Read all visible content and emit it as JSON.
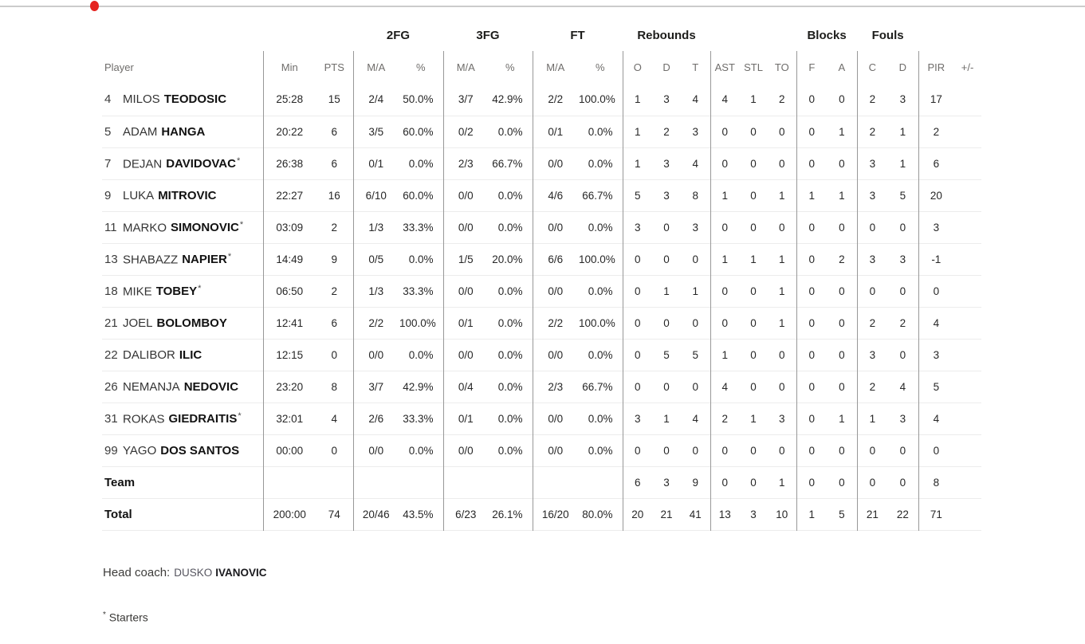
{
  "page": {
    "top_marker": {
      "line_color": "#cccccc",
      "dot_color": "#e5231f"
    }
  },
  "table": {
    "starter_mark": "*",
    "group_headers": {
      "fg2": "2FG",
      "fg3": "3FG",
      "ft": "FT",
      "rebounds": "Rebounds",
      "blocks": "Blocks",
      "fouls": "Fouls"
    },
    "sub_headers": {
      "player": "Player",
      "min": "Min",
      "pts": "PTS",
      "ma": "M/A",
      "pct": "%",
      "reb_o": "O",
      "reb_d": "D",
      "reb_t": "T",
      "ast": "AST",
      "stl": "STL",
      "to": "TO",
      "blk_f": "F",
      "blk_a": "A",
      "foul_c": "C",
      "foul_d": "D",
      "pir": "PIR",
      "pm": "+/-"
    },
    "rows": [
      {
        "kind": "player",
        "number": "4",
        "first": "MILOS",
        "last": "TEODOSIC",
        "starter": false,
        "min": "25:28",
        "pts": "15",
        "fg2_ma": "2/4",
        "fg2_pct": "50.0%",
        "fg3_ma": "3/7",
        "fg3_pct": "42.9%",
        "ft_ma": "2/2",
        "ft_pct": "100.0%",
        "reb_o": "1",
        "reb_d": "3",
        "reb_t": "4",
        "ast": "4",
        "stl": "1",
        "to": "2",
        "blk_f": "0",
        "blk_a": "0",
        "foul_c": "2",
        "foul_d": "3",
        "pir": "17",
        "pm": ""
      },
      {
        "kind": "player",
        "number": "5",
        "first": "ADAM",
        "last": "HANGA",
        "starter": false,
        "min": "20:22",
        "pts": "6",
        "fg2_ma": "3/5",
        "fg2_pct": "60.0%",
        "fg3_ma": "0/2",
        "fg3_pct": "0.0%",
        "ft_ma": "0/1",
        "ft_pct": "0.0%",
        "reb_o": "1",
        "reb_d": "2",
        "reb_t": "3",
        "ast": "0",
        "stl": "0",
        "to": "0",
        "blk_f": "0",
        "blk_a": "1",
        "foul_c": "2",
        "foul_d": "1",
        "pir": "2",
        "pm": ""
      },
      {
        "kind": "player",
        "number": "7",
        "first": "DEJAN",
        "last": "DAVIDOVAC",
        "starter": true,
        "min": "26:38",
        "pts": "6",
        "fg2_ma": "0/1",
        "fg2_pct": "0.0%",
        "fg3_ma": "2/3",
        "fg3_pct": "66.7%",
        "ft_ma": "0/0",
        "ft_pct": "0.0%",
        "reb_o": "1",
        "reb_d": "3",
        "reb_t": "4",
        "ast": "0",
        "stl": "0",
        "to": "0",
        "blk_f": "0",
        "blk_a": "0",
        "foul_c": "3",
        "foul_d": "1",
        "pir": "6",
        "pm": ""
      },
      {
        "kind": "player",
        "number": "9",
        "first": "LUKA",
        "last": "MITROVIC",
        "starter": false,
        "min": "22:27",
        "pts": "16",
        "fg2_ma": "6/10",
        "fg2_pct": "60.0%",
        "fg3_ma": "0/0",
        "fg3_pct": "0.0%",
        "ft_ma": "4/6",
        "ft_pct": "66.7%",
        "reb_o": "5",
        "reb_d": "3",
        "reb_t": "8",
        "ast": "1",
        "stl": "0",
        "to": "1",
        "blk_f": "1",
        "blk_a": "1",
        "foul_c": "3",
        "foul_d": "5",
        "pir": "20",
        "pm": ""
      },
      {
        "kind": "player",
        "number": "11",
        "first": "MARKO",
        "last": "SIMONOVIC",
        "starter": true,
        "min": "03:09",
        "pts": "2",
        "fg2_ma": "1/3",
        "fg2_pct": "33.3%",
        "fg3_ma": "0/0",
        "fg3_pct": "0.0%",
        "ft_ma": "0/0",
        "ft_pct": "0.0%",
        "reb_o": "3",
        "reb_d": "0",
        "reb_t": "3",
        "ast": "0",
        "stl": "0",
        "to": "0",
        "blk_f": "0",
        "blk_a": "0",
        "foul_c": "0",
        "foul_d": "0",
        "pir": "3",
        "pm": ""
      },
      {
        "kind": "player",
        "number": "13",
        "first": "SHABAZZ",
        "last": "NAPIER",
        "starter": true,
        "min": "14:49",
        "pts": "9",
        "fg2_ma": "0/5",
        "fg2_pct": "0.0%",
        "fg3_ma": "1/5",
        "fg3_pct": "20.0%",
        "ft_ma": "6/6",
        "ft_pct": "100.0%",
        "reb_o": "0",
        "reb_d": "0",
        "reb_t": "0",
        "ast": "1",
        "stl": "1",
        "to": "1",
        "blk_f": "0",
        "blk_a": "2",
        "foul_c": "3",
        "foul_d": "3",
        "pir": "-1",
        "pm": ""
      },
      {
        "kind": "player",
        "number": "18",
        "first": "MIKE",
        "last": "TOBEY",
        "starter": true,
        "min": "06:50",
        "pts": "2",
        "fg2_ma": "1/3",
        "fg2_pct": "33.3%",
        "fg3_ma": "0/0",
        "fg3_pct": "0.0%",
        "ft_ma": "0/0",
        "ft_pct": "0.0%",
        "reb_o": "0",
        "reb_d": "1",
        "reb_t": "1",
        "ast": "0",
        "stl": "0",
        "to": "1",
        "blk_f": "0",
        "blk_a": "0",
        "foul_c": "0",
        "foul_d": "0",
        "pir": "0",
        "pm": ""
      },
      {
        "kind": "player",
        "number": "21",
        "first": "JOEL",
        "last": "BOLOMBOY",
        "starter": false,
        "min": "12:41",
        "pts": "6",
        "fg2_ma": "2/2",
        "fg2_pct": "100.0%",
        "fg3_ma": "0/1",
        "fg3_pct": "0.0%",
        "ft_ma": "2/2",
        "ft_pct": "100.0%",
        "reb_o": "0",
        "reb_d": "0",
        "reb_t": "0",
        "ast": "0",
        "stl": "0",
        "to": "1",
        "blk_f": "0",
        "blk_a": "0",
        "foul_c": "2",
        "foul_d": "2",
        "pir": "4",
        "pm": ""
      },
      {
        "kind": "player",
        "number": "22",
        "first": "DALIBOR",
        "last": "ILIC",
        "starter": false,
        "min": "12:15",
        "pts": "0",
        "fg2_ma": "0/0",
        "fg2_pct": "0.0%",
        "fg3_ma": "0/0",
        "fg3_pct": "0.0%",
        "ft_ma": "0/0",
        "ft_pct": "0.0%",
        "reb_o": "0",
        "reb_d": "5",
        "reb_t": "5",
        "ast": "1",
        "stl": "0",
        "to": "0",
        "blk_f": "0",
        "blk_a": "0",
        "foul_c": "3",
        "foul_d": "0",
        "pir": "3",
        "pm": ""
      },
      {
        "kind": "player",
        "number": "26",
        "first": "NEMANJA",
        "last": "NEDOVIC",
        "starter": false,
        "min": "23:20",
        "pts": "8",
        "fg2_ma": "3/7",
        "fg2_pct": "42.9%",
        "fg3_ma": "0/4",
        "fg3_pct": "0.0%",
        "ft_ma": "2/3",
        "ft_pct": "66.7%",
        "reb_o": "0",
        "reb_d": "0",
        "reb_t": "0",
        "ast": "4",
        "stl": "0",
        "to": "0",
        "blk_f": "0",
        "blk_a": "0",
        "foul_c": "2",
        "foul_d": "4",
        "pir": "5",
        "pm": ""
      },
      {
        "kind": "player",
        "number": "31",
        "first": "ROKAS",
        "last": "GIEDRAITIS",
        "starter": true,
        "min": "32:01",
        "pts": "4",
        "fg2_ma": "2/6",
        "fg2_pct": "33.3%",
        "fg3_ma": "0/1",
        "fg3_pct": "0.0%",
        "ft_ma": "0/0",
        "ft_pct": "0.0%",
        "reb_o": "3",
        "reb_d": "1",
        "reb_t": "4",
        "ast": "2",
        "stl": "1",
        "to": "3",
        "blk_f": "0",
        "blk_a": "1",
        "foul_c": "1",
        "foul_d": "3",
        "pir": "4",
        "pm": ""
      },
      {
        "kind": "player",
        "number": "99",
        "first": "YAGO",
        "last": "DOS SANTOS",
        "starter": false,
        "min": "00:00",
        "pts": "0",
        "fg2_ma": "0/0",
        "fg2_pct": "0.0%",
        "fg3_ma": "0/0",
        "fg3_pct": "0.0%",
        "ft_ma": "0/0",
        "ft_pct": "0.0%",
        "reb_o": "0",
        "reb_d": "0",
        "reb_t": "0",
        "ast": "0",
        "stl": "0",
        "to": "0",
        "blk_f": "0",
        "blk_a": "0",
        "foul_c": "0",
        "foul_d": "0",
        "pir": "0",
        "pm": ""
      },
      {
        "kind": "team",
        "number": "",
        "first": "",
        "last": "Team",
        "starter": false,
        "min": "",
        "pts": "",
        "fg2_ma": "",
        "fg2_pct": "",
        "fg3_ma": "",
        "fg3_pct": "",
        "ft_ma": "",
        "ft_pct": "",
        "reb_o": "6",
        "reb_d": "3",
        "reb_t": "9",
        "ast": "0",
        "stl": "0",
        "to": "1",
        "blk_f": "0",
        "blk_a": "0",
        "foul_c": "0",
        "foul_d": "0",
        "pir": "8",
        "pm": ""
      },
      {
        "kind": "total",
        "number": "",
        "first": "",
        "last": "Total",
        "starter": false,
        "min": "200:00",
        "pts": "74",
        "fg2_ma": "20/46",
        "fg2_pct": "43.5%",
        "fg3_ma": "6/23",
        "fg3_pct": "26.1%",
        "ft_ma": "16/20",
        "ft_pct": "80.0%",
        "reb_o": "20",
        "reb_d": "21",
        "reb_t": "41",
        "ast": "13",
        "stl": "3",
        "to": "10",
        "blk_f": "1",
        "blk_a": "5",
        "foul_c": "21",
        "foul_d": "22",
        "pir": "71",
        "pm": ""
      }
    ]
  },
  "footer": {
    "head_coach_label": "Head coach:",
    "head_coach_first": "DUSKO",
    "head_coach_last": "IVANOVIC",
    "starters_mark": "*",
    "starters_text": "Starters"
  }
}
